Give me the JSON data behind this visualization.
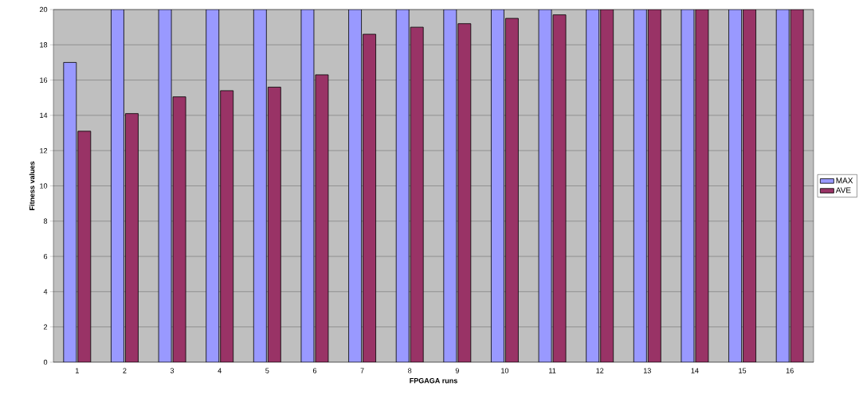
{
  "chart_data": {
    "type": "bar",
    "xlabel": "FPGAGA runs",
    "ylabel": "Fitness values",
    "categories": [
      "1",
      "2",
      "3",
      "4",
      "5",
      "6",
      "7",
      "8",
      "9",
      "10",
      "11",
      "12",
      "13",
      "14",
      "15",
      "16"
    ],
    "series": [
      {
        "name": "MAX",
        "color": "#9999ff",
        "values": [
          17,
          20,
          20,
          20,
          20,
          20,
          20,
          20,
          20,
          20,
          20,
          20,
          20,
          20,
          20,
          20
        ]
      },
      {
        "name": "AVE",
        "color": "#993366",
        "values": [
          13.1,
          14.1,
          15.05,
          15.4,
          15.6,
          16.3,
          18.6,
          19.0,
          19.2,
          19.5,
          19.7,
          20,
          20,
          20,
          20,
          20
        ]
      }
    ],
    "ylim": [
      0,
      20
    ],
    "yticks": [
      0,
      2,
      4,
      6,
      8,
      10,
      12,
      14,
      16,
      18,
      20
    ],
    "grid": "y",
    "legend": "right"
  }
}
